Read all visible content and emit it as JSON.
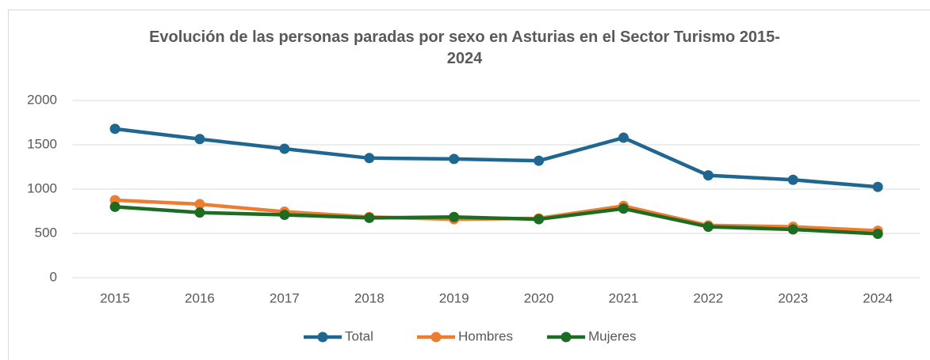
{
  "chart_data": {
    "type": "line",
    "title": "Evolución de las personas paradas por sexo en Asturias en el Sector Turismo 2015-2024",
    "categories": [
      "2015",
      "2016",
      "2017",
      "2018",
      "2019",
      "2020",
      "2021",
      "2022",
      "2023",
      "2024"
    ],
    "series": [
      {
        "name": "Total",
        "color": "#1f6690",
        "values": [
          1680,
          1565,
          1455,
          1350,
          1340,
          1320,
          1580,
          1155,
          1105,
          1025
        ]
      },
      {
        "name": "Hombres",
        "color": "#ed7d31",
        "values": [
          875,
          830,
          745,
          685,
          660,
          670,
          810,
          590,
          575,
          530
        ]
      },
      {
        "name": "Mujeres",
        "color": "#1e6b23",
        "values": [
          800,
          735,
          710,
          675,
          685,
          660,
          780,
          575,
          545,
          495
        ]
      }
    ],
    "ylim": [
      0,
      2000
    ],
    "yticks": [
      0,
      500,
      1000,
      1500,
      2000
    ],
    "grid": true,
    "legend": "bottom"
  }
}
